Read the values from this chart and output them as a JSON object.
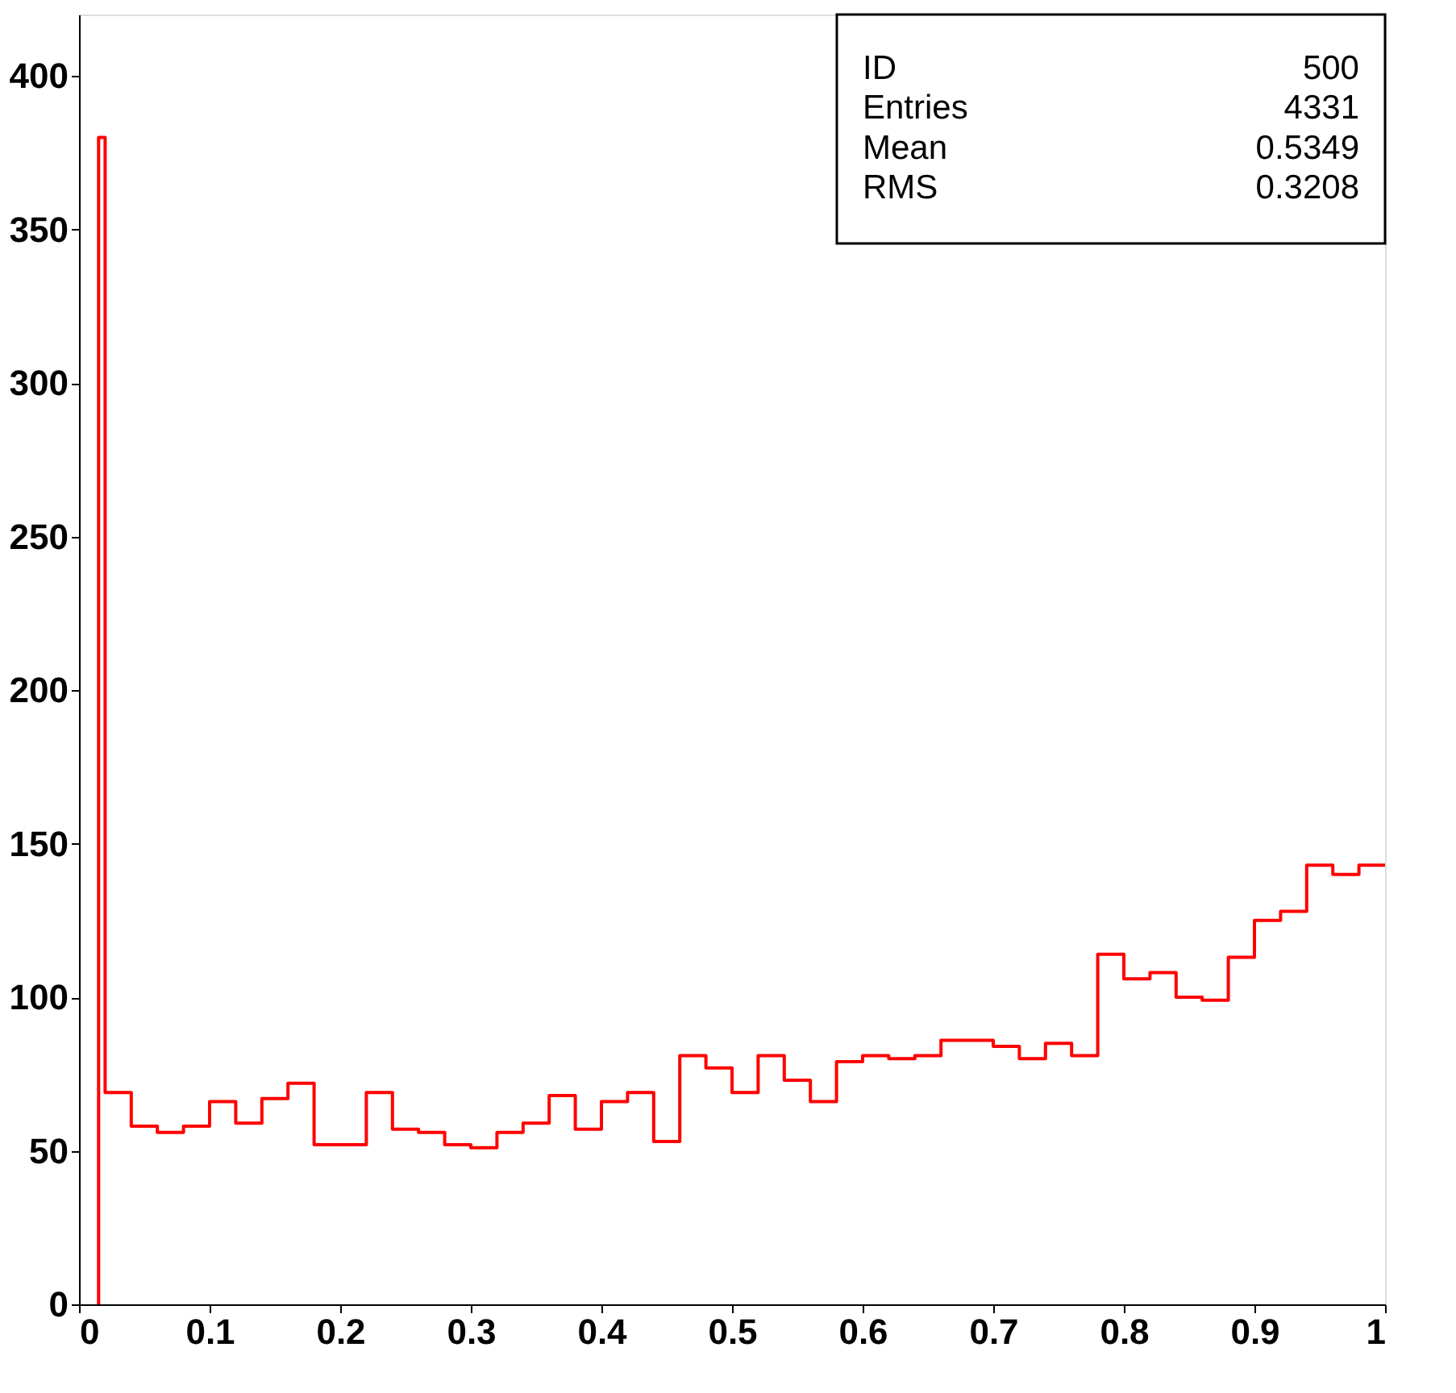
{
  "chart_data": {
    "type": "histogram",
    "bins": [
      0.015,
      0.02,
      0.04,
      0.06,
      0.08,
      0.1,
      0.12,
      0.14,
      0.16,
      0.18,
      0.2,
      0.22,
      0.24,
      0.26,
      0.28,
      0.3,
      0.32,
      0.34,
      0.36,
      0.38,
      0.4,
      0.42,
      0.44,
      0.46,
      0.48,
      0.5,
      0.52,
      0.54,
      0.56,
      0.58,
      0.6,
      0.62,
      0.64,
      0.66,
      0.68,
      0.7,
      0.72,
      0.74,
      0.76,
      0.78,
      0.8,
      0.82,
      0.84,
      0.86,
      0.88,
      0.9,
      0.92,
      0.94,
      0.96,
      0.98,
      1.0
    ],
    "values": [
      380,
      69,
      58,
      56,
      58,
      66,
      59,
      67,
      72,
      52,
      52,
      69,
      57,
      56,
      52,
      51,
      56,
      59,
      68,
      57,
      66,
      69,
      53,
      81,
      77,
      69,
      81,
      73,
      66,
      79,
      81,
      80,
      81,
      86,
      86,
      84,
      80,
      85,
      81,
      114,
      106,
      108,
      100,
      99,
      113,
      125,
      128,
      143,
      140,
      143
    ],
    "color": "#ff0000",
    "xlim": [
      0,
      1
    ],
    "xticks": [
      0,
      0.1,
      0.2,
      0.3,
      0.4,
      0.5,
      0.6,
      0.7,
      0.8,
      0.9,
      1
    ],
    "ylim": [
      0,
      420
    ],
    "yticks": [
      0,
      50,
      100,
      150,
      200,
      250,
      300,
      350,
      400
    ],
    "grid": false,
    "annotations": [
      "ID",
      "500",
      "Entries",
      "4331",
      "Mean",
      "0.5349",
      "RMS",
      "0.3208"
    ]
  }
}
